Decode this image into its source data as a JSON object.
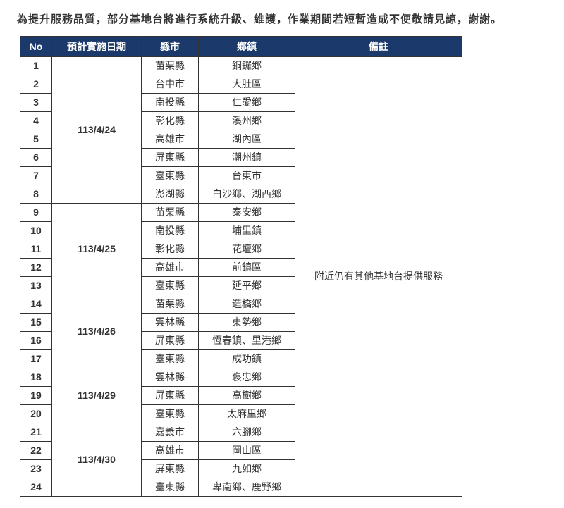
{
  "notice": "為提升服務品質，部分基地台將進行系統升級、維護，作業期間若短暫造成不便敬請見諒，謝謝。",
  "headers": {
    "no": "No",
    "date": "預計實施日期",
    "city": "縣市",
    "town": "鄉鎮",
    "note": "備註"
  },
  "note": "附近仍有其他基地台提供服務",
  "groups": [
    {
      "date": "113/4/24",
      "rows": [
        {
          "no": "1",
          "city": "苗栗縣",
          "town": "銅鑼鄉"
        },
        {
          "no": "2",
          "city": "台中市",
          "town": "大肚區"
        },
        {
          "no": "3",
          "city": "南投縣",
          "town": "仁愛鄉"
        },
        {
          "no": "4",
          "city": "彰化縣",
          "town": "溪州鄉"
        },
        {
          "no": "5",
          "city": "高雄市",
          "town": "湖內區"
        },
        {
          "no": "6",
          "city": "屏東縣",
          "town": "潮州鎮"
        },
        {
          "no": "7",
          "city": "臺東縣",
          "town": "台東市"
        },
        {
          "no": "8",
          "city": "澎湖縣",
          "town": "白沙鄉、湖西鄉"
        }
      ]
    },
    {
      "date": "113/4/25",
      "rows": [
        {
          "no": "9",
          "city": "苗栗縣",
          "town": "泰安鄉"
        },
        {
          "no": "10",
          "city": "南投縣",
          "town": "埔里鎮"
        },
        {
          "no": "11",
          "city": "彰化縣",
          "town": "花壇鄉"
        },
        {
          "no": "12",
          "city": "高雄市",
          "town": "前鎮區"
        },
        {
          "no": "13",
          "city": "臺東縣",
          "town": "延平鄉"
        }
      ]
    },
    {
      "date": "113/4/26",
      "rows": [
        {
          "no": "14",
          "city": "苗栗縣",
          "town": "造橋鄉"
        },
        {
          "no": "15",
          "city": "雲林縣",
          "town": "東勢鄉"
        },
        {
          "no": "16",
          "city": "屏東縣",
          "town": "恆春鎮、里港鄉"
        },
        {
          "no": "17",
          "city": "臺東縣",
          "town": "成功鎮"
        }
      ]
    },
    {
      "date": "113/4/29",
      "rows": [
        {
          "no": "18",
          "city": "雲林縣",
          "town": "褒忠鄉"
        },
        {
          "no": "19",
          "city": "屏東縣",
          "town": "高樹鄉"
        },
        {
          "no": "20",
          "city": "臺東縣",
          "town": "太麻里鄉"
        }
      ]
    },
    {
      "date": "113/4/30",
      "rows": [
        {
          "no": "21",
          "city": "嘉義市",
          "town": "六腳鄉"
        },
        {
          "no": "22",
          "city": "高雄市",
          "town": "岡山區"
        },
        {
          "no": "23",
          "city": "屏東縣",
          "town": "九如鄉"
        },
        {
          "no": "24",
          "city": "臺東縣",
          "town": "卑南鄉、鹿野鄉"
        }
      ]
    }
  ]
}
